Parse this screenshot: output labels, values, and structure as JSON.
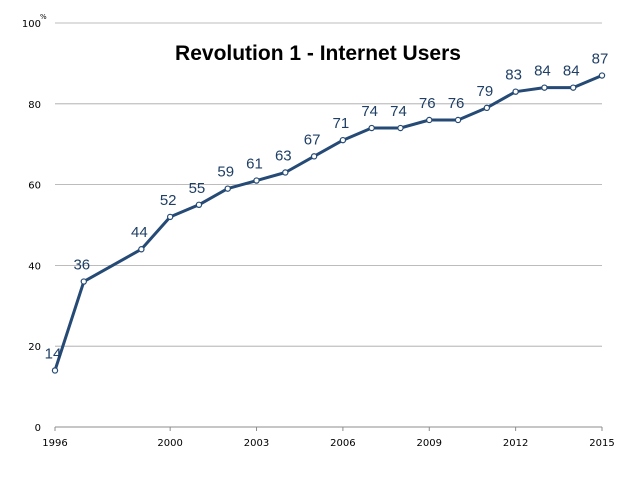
{
  "chart_data": {
    "type": "line",
    "title": "Revolution 1 - Internet Users",
    "y_unit": "%",
    "ylim": [
      0,
      100
    ],
    "y_ticks": [
      0,
      20,
      40,
      60,
      80,
      100
    ],
    "xlim": [
      1996,
      2015
    ],
    "x_ticks": [
      1996,
      2000,
      2003,
      2006,
      2009,
      2012,
      2015
    ],
    "grid": true,
    "legend": "none",
    "series_color": "#254a75",
    "label_color": "#1f3f66",
    "x": [
      1996,
      1997,
      1999,
      2000,
      2001,
      2002,
      2003,
      2004,
      2005,
      2006,
      2007,
      2008,
      2009,
      2010,
      2011,
      2012,
      2013,
      2014,
      2015
    ],
    "values": [
      14,
      36,
      44,
      52,
      55,
      59,
      61,
      63,
      67,
      71,
      74,
      74,
      76,
      76,
      79,
      83,
      84,
      84,
      87
    ]
  }
}
